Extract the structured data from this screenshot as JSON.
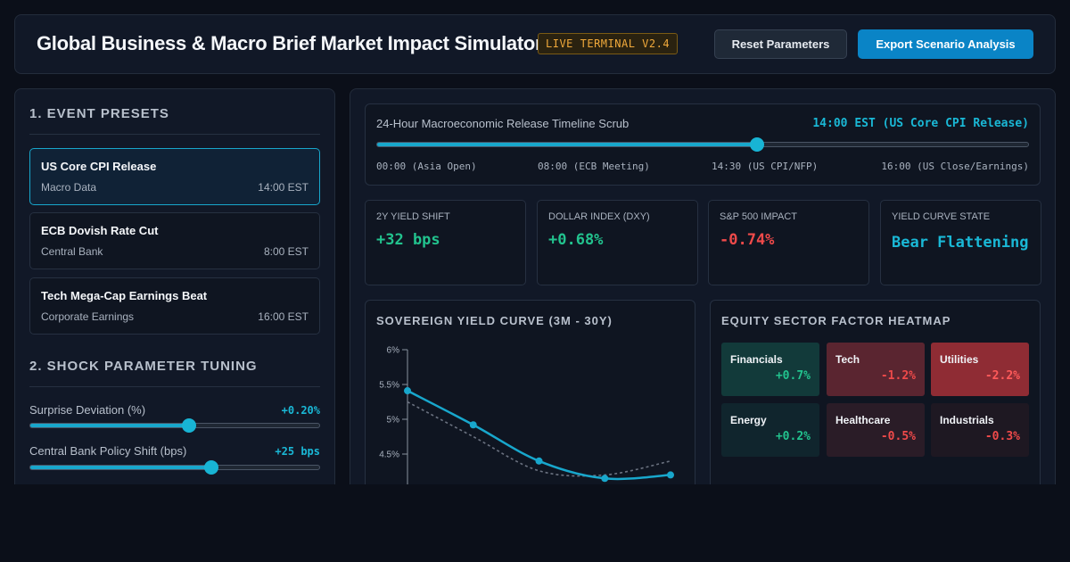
{
  "header": {
    "title": "Global Business & Macro Brief Market Impact Simulator",
    "badge": "LIVE TERMINAL V2.4",
    "reset_label": "Reset Parameters",
    "export_label": "Export Scenario Analysis"
  },
  "presets": {
    "section_title": "1. EVENT PRESETS",
    "items": [
      {
        "name": "US Core CPI Release",
        "category": "Macro Data",
        "time": "14:00 EST",
        "active": true
      },
      {
        "name": "ECB Dovish Rate Cut",
        "category": "Central Bank",
        "time": "8:00 EST",
        "active": false
      },
      {
        "name": "Tech Mega-Cap Earnings Beat",
        "category": "Corporate Earnings",
        "time": "16:00 EST",
        "active": false
      }
    ]
  },
  "tuning": {
    "section_title": "2. SHOCK PARAMETER TUNING",
    "sliders": [
      {
        "label": "Surprise Deviation (%)",
        "value_text": "+0.20%",
        "level": 0.55
      },
      {
        "label": "Central Bank Policy Shift (bps)",
        "value_text": "+25 bps",
        "level": 0.625
      }
    ]
  },
  "timeline": {
    "title": "24-Hour Macroeconomic Release Timeline Scrub",
    "current": "14:00 EST (US Core CPI Release)",
    "position": 0.583,
    "ticks": [
      "00:00 (Asia Open)",
      "08:00 (ECB Meeting)",
      "14:30 (US CPI/NFP)",
      "16:00 (US Close/Earnings)"
    ]
  },
  "metrics": [
    {
      "label": "2Y YIELD SHIFT",
      "value": "+32 bps",
      "color": "#22c38e"
    },
    {
      "label": "DOLLAR INDEX (DXY)",
      "value": "+0.68%",
      "color": "#22c38e"
    },
    {
      "label": "S&P 500 IMPACT",
      "value": "-0.74%",
      "color": "#f04a4a"
    },
    {
      "label": "YIELD CURVE STATE",
      "value": "Bear Flattening",
      "color": "#1ab8d6"
    }
  ],
  "yield_chart": {
    "title": "SOVEREIGN YIELD CURVE (3M - 30Y)"
  },
  "chart_data": {
    "type": "line",
    "title": "SOVEREIGN YIELD CURVE (3M - 30Y)",
    "y_ticks": [
      "6%",
      "5.5%",
      "5%",
      "4.5%"
    ],
    "y_tick_values": [
      6.0,
      5.5,
      5.0,
      4.5
    ],
    "series": [
      {
        "values": [
          5.41,
          4.92,
          4.4,
          4.15,
          4.2
        ],
        "style": "solid",
        "color": "#18a7cc",
        "markers": true
      },
      {
        "values": [
          5.25,
          4.75,
          4.26,
          4.2,
          4.4
        ],
        "style": "dashed",
        "color": "#6b7280",
        "markers": false
      }
    ]
  },
  "heatmap": {
    "title": "EQUITY SECTOR FACTOR HEATMAP",
    "cells": [
      {
        "name": "Financials",
        "value": "+0.7%",
        "bg": "#123a3a",
        "color": "#22c38e"
      },
      {
        "name": "Tech",
        "value": "-1.2%",
        "bg": "#5a2530",
        "color": "#f04a4a"
      },
      {
        "name": "Utilities",
        "value": "-2.2%",
        "bg": "#8f2c34",
        "color": "#ff5a5a"
      },
      {
        "name": "Energy",
        "value": "+0.2%",
        "bg": "#10252d",
        "color": "#22c38e"
      },
      {
        "name": "Healthcare",
        "value": "-0.5%",
        "bg": "#2a1c27",
        "color": "#f04a4a"
      },
      {
        "name": "Industrials",
        "value": "-0.3%",
        "bg": "#1e1822",
        "color": "#f04a4a"
      }
    ]
  }
}
